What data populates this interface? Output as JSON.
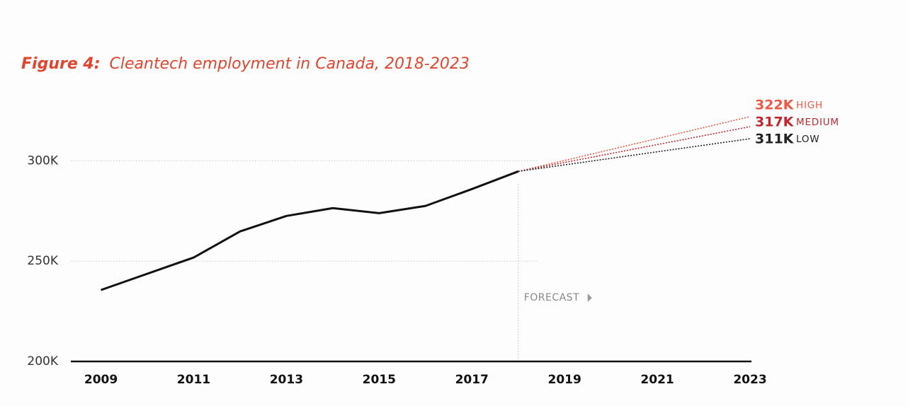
{
  "chart_data": {
    "type": "line",
    "figure_label": "Figure 4:",
    "title": "Cleantech employment in Canada, 2018-2023",
    "annotation": "FORECAST",
    "xlim": [
      2008.35,
      2023
    ],
    "xticks": [
      2009,
      2011,
      2013,
      2015,
      2017,
      2019,
      2021,
      2023
    ],
    "ylim": [
      200,
      335
    ],
    "yticks": [
      {
        "value": 200,
        "label": "200K"
      },
      {
        "value": 250,
        "label": "250K"
      },
      {
        "value": 300,
        "label": "300K"
      }
    ],
    "grid": true,
    "forecast_start": 2018,
    "series": [
      {
        "color": "#111111",
        "style": "solid",
        "x": [
          2009,
          2010,
          2011,
          2012,
          2013,
          2014,
          2015,
          2016,
          2017,
          2018
        ],
        "values": [
          235.6,
          243.7,
          251.8,
          264.8,
          272.5,
          276.4,
          273.9,
          277.5,
          285.9,
          294.7
        ]
      },
      {
        "name": "HIGH",
        "color": "#ec5a44",
        "style": "dotted",
        "x": [
          2018,
          2023
        ],
        "values": [
          294.7,
          322
        ],
        "value_labels": [
          null,
          "322K"
        ]
      },
      {
        "name": "MEDIUM",
        "color": "#c0282d",
        "style": "dotted",
        "x": [
          2018,
          2023
        ],
        "values": [
          294.7,
          317
        ],
        "value_labels": [
          null,
          "317K"
        ]
      },
      {
        "name": "LOW",
        "color": "#222222",
        "style": "dotted",
        "x": [
          2018,
          2023
        ],
        "values": [
          294.7,
          311
        ],
        "value_labels": [
          null,
          "311K"
        ]
      }
    ]
  }
}
